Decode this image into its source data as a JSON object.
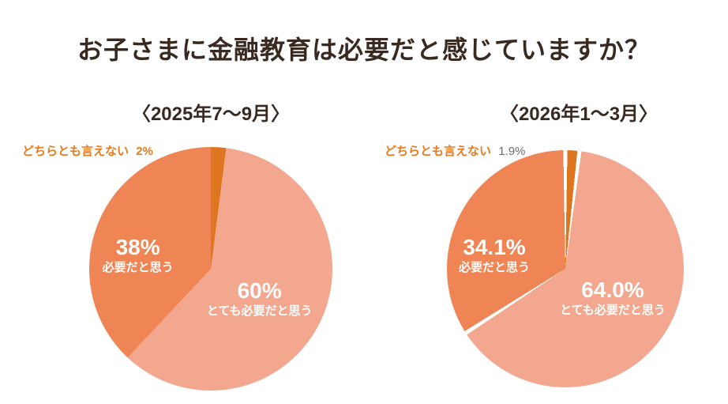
{
  "title": "お子さまに金融教育は必要だと感じていますか？",
  "colors": {
    "title_text": "#382a20",
    "label_white": "#ffffff",
    "callout_orange": "#e87a1c",
    "callout_value_gray": "#6e6e6e",
    "very_necessary": "#f3a78f",
    "necessary": "#ef8454",
    "neither": "#de751f",
    "background": "#ffffff"
  },
  "chart_data": [
    {
      "type": "pie",
      "title": "〈2025年7〜9月〉",
      "legend_position": "inside",
      "gap_deg": 0,
      "start_angle_deg": 0,
      "render_order": [
        2,
        0,
        1
      ],
      "slices": [
        {
          "label": "とても必要だと思う",
          "value": 60,
          "display": "60%",
          "color": "#f3a78f"
        },
        {
          "label": "必要だと思う",
          "value": 38,
          "display": "38%",
          "color": "#ef8454"
        },
        {
          "label": "どちらとも言えない",
          "value": 2,
          "display": "2%",
          "color": "#de751f"
        }
      ]
    },
    {
      "type": "pie",
      "title": "〈2026年1〜3月〉",
      "legend_position": "inside",
      "gap_deg": 2,
      "start_angle_deg": 0,
      "render_order": [
        2,
        0,
        1
      ],
      "slices": [
        {
          "label": "とても必要だと思う",
          "value": 64.0,
          "display": "64.0%",
          "color": "#f3a78f"
        },
        {
          "label": "必要だと思う",
          "value": 34.1,
          "display": "34.1%",
          "color": "#ef8454"
        },
        {
          "label": "どちらとも言えない",
          "value": 1.9,
          "display": "1.9%",
          "color": "#de751f"
        }
      ]
    }
  ]
}
